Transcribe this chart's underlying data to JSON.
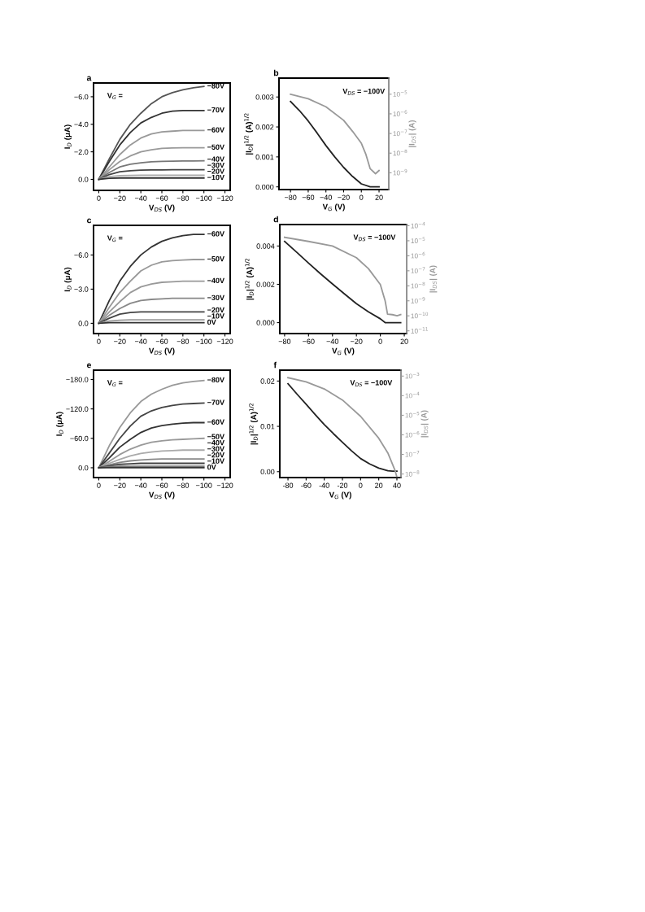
{
  "chart_data": [
    {
      "type": "line",
      "title": "a",
      "xlabel": "V$_{DS}$ (V)",
      "ylabel": "I$_{D}$ (μA)",
      "annotations": [
        "V$_{G}$ ="
      ],
      "x": [
        0,
        -10,
        -20,
        -30,
        -40,
        -50,
        -60,
        -70,
        -80,
        -90,
        -100
      ],
      "xlim": [
        5,
        -125
      ],
      "ylim": [
        0.8,
        -7.0
      ],
      "xticks": [
        {
          "value": 0,
          "label": "0"
        },
        {
          "value": -20,
          "label": "−20"
        },
        {
          "value": -40,
          "label": "−40"
        },
        {
          "value": -60,
          "label": "−60"
        },
        {
          "value": -80,
          "label": "−80"
        },
        {
          "value": -100,
          "label": "−100"
        },
        {
          "value": -120,
          "label": "−120"
        }
      ],
      "yticks": [
        {
          "value": 0,
          "label": "0.0"
        },
        {
          "value": -2,
          "label": "−2.0"
        },
        {
          "value": -4,
          "label": "−4.0"
        },
        {
          "value": -6,
          "label": "−6.0"
        }
      ],
      "series": [
        {
          "name": "−80V",
          "color": "#555555",
          "values": [
            0,
            -1.5,
            -2.9,
            -4.0,
            -4.8,
            -5.5,
            -6.0,
            -6.3,
            -6.5,
            -6.65,
            -6.75
          ]
        },
        {
          "name": "−70V",
          "color": "#333333",
          "values": [
            0,
            -1.3,
            -2.5,
            -3.4,
            -4.1,
            -4.5,
            -4.8,
            -4.95,
            -5.0,
            -5.0,
            -5.0
          ]
        },
        {
          "name": "−60V",
          "color": "#999999",
          "values": [
            0,
            -0.9,
            -1.8,
            -2.5,
            -3.0,
            -3.3,
            -3.45,
            -3.5,
            -3.55,
            -3.55,
            -3.55
          ]
        },
        {
          "name": "−50V",
          "color": "#999999",
          "values": [
            0,
            -0.7,
            -1.3,
            -1.7,
            -2.0,
            -2.15,
            -2.25,
            -2.28,
            -2.3,
            -2.3,
            -2.3
          ]
        },
        {
          "name": "−40V",
          "color": "#777777",
          "values": [
            0,
            -0.5,
            -0.9,
            -1.1,
            -1.2,
            -1.27,
            -1.3,
            -1.32,
            -1.33,
            -1.34,
            -1.35
          ]
        },
        {
          "name": "−30V",
          "color": "#444444",
          "values": [
            0,
            -0.35,
            -0.55,
            -0.63,
            -0.67,
            -0.68,
            -0.69,
            -0.7,
            -0.7,
            -0.7,
            -0.7
          ]
        },
        {
          "name": "−20V",
          "color": "#aaaaaa",
          "values": [
            0,
            -0.2,
            -0.27,
            -0.29,
            -0.3,
            -0.3,
            -0.3,
            -0.3,
            -0.3,
            -0.3,
            -0.3
          ]
        },
        {
          "name": "−10V",
          "color": "#333333",
          "values": [
            0,
            -0.08,
            -0.1,
            -0.1,
            -0.1,
            -0.1,
            -0.1,
            -0.1,
            -0.1,
            -0.1,
            -0.1
          ]
        }
      ]
    },
    {
      "type": "line",
      "title": "b",
      "xlabel": "V$_{G}$ (V)",
      "ylabel": "|I$_{D}$|$^{1/2}$ (A)$^{1/2}$",
      "y2label": "|I$_{DS}$| (A)",
      "annotations": [
        "V$_{DS}$ = −100V"
      ],
      "log": "y2",
      "xlim": [
        -93,
        31
      ],
      "ylim": [
        -9e-05,
        0.00363
      ],
      "y2lim": [
        1.4e-10,
        6.6e-05
      ],
      "xticks": [
        {
          "value": -80,
          "label": "−80"
        },
        {
          "value": -60,
          "label": "−60"
        },
        {
          "value": -40,
          "label": "−40"
        },
        {
          "value": -20,
          "label": "−20"
        },
        0,
        20
      ],
      "yticks": [
        {
          "value": 0,
          "label": "0.000"
        },
        {
          "value": 0.001,
          "label": "0.001"
        },
        {
          "value": 0.002,
          "label": "0.002"
        },
        {
          "value": 0.003,
          "label": "0.003"
        }
      ],
      "y2ticks": [
        {
          "value": 1e-09,
          "label": "10$^{−9}$"
        },
        {
          "value": 1e-08,
          "label": "10$^{−8}$"
        },
        {
          "value": 1e-07,
          "label": "10$^{−7}$"
        },
        {
          "value": 1e-06,
          "label": "10$^{−6}$"
        },
        {
          "value": 1e-05,
          "label": "10$^{−5}$"
        }
      ],
      "series": [
        {
          "color": "#222222",
          "x": [
            -80,
            -70,
            -60,
            -50,
            -40,
            -30,
            -20,
            -10,
            0,
            10,
            20
          ],
          "values": [
            0.00285,
            0.00255,
            0.0022,
            0.0018,
            0.00138,
            0.001,
            0.00065,
            0.00035,
            0.0001,
            0,
            0
          ]
        },
        {
          "color": "#999999",
          "axis": "y2",
          "x": [
            -80,
            -60,
            -40,
            -20,
            -10,
            0,
            5,
            10,
            16,
            20
          ],
          "values": [
            1e-05,
            5.9e-06,
            2.3e-06,
            4.7e-07,
            1.3e-07,
            3.2e-08,
            9e-09,
            1.6e-09,
            9e-10,
            1.3e-09
          ]
        }
      ]
    },
    {
      "type": "line",
      "title": "c",
      "xlabel": "V$_{DS}$ (V)",
      "ylabel": "I$_{D}$ (μA)",
      "annotations": [
        "V$_{G}$ ="
      ],
      "x": [
        0,
        -10,
        -20,
        -30,
        -40,
        -50,
        -60,
        -70,
        -80,
        -90,
        -100
      ],
      "xlim": [
        5,
        -125
      ],
      "ylim": [
        0.9,
        -8.6
      ],
      "xticks": [
        {
          "value": 0,
          "label": "0"
        },
        {
          "value": -20,
          "label": "−20"
        },
        {
          "value": -40,
          "label": "−40"
        },
        {
          "value": -60,
          "label": "−60"
        },
        {
          "value": -80,
          "label": "−80"
        },
        {
          "value": -100,
          "label": "−100"
        },
        {
          "value": -120,
          "label": "−120"
        }
      ],
      "yticks": [
        {
          "value": 0,
          "label": "0.0"
        },
        {
          "value": -3,
          "label": "−3.0"
        },
        {
          "value": -6,
          "label": "−6.0"
        }
      ],
      "series": [
        {
          "name": "−60V",
          "color": "#333333",
          "values": [
            0,
            -2.0,
            -3.7,
            -5.0,
            -6.0,
            -6.7,
            -7.2,
            -7.5,
            -7.7,
            -7.8,
            -7.8
          ]
        },
        {
          "name": "−50V",
          "color": "#999999",
          "values": [
            0,
            -1.4,
            -2.7,
            -3.7,
            -4.6,
            -5.1,
            -5.4,
            -5.5,
            -5.55,
            -5.6,
            -5.6
          ]
        },
        {
          "name": "−40V",
          "color": "#999999",
          "values": [
            0,
            -1.0,
            -1.9,
            -2.7,
            -3.2,
            -3.45,
            -3.6,
            -3.65,
            -3.7,
            -3.7,
            -3.7
          ]
        },
        {
          "name": "−30V",
          "color": "#888888",
          "values": [
            0,
            -0.7,
            -1.3,
            -1.75,
            -2.0,
            -2.1,
            -2.15,
            -2.2,
            -2.2,
            -2.2,
            -2.2
          ]
        },
        {
          "name": "−20V",
          "color": "#444444",
          "values": [
            0,
            -0.45,
            -0.8,
            -0.95,
            -1.0,
            -1.0,
            -1.0,
            -1.0,
            -1.0,
            -1.0,
            -1.0
          ]
        },
        {
          "name": "−10V",
          "color": "#999999",
          "values": [
            0,
            -0.2,
            -0.27,
            -0.3,
            -0.3,
            -0.3,
            -0.3,
            -0.3,
            -0.3,
            -0.3,
            -0.3
          ]
        },
        {
          "name": "0V",
          "color": "#333333",
          "values": [
            0,
            -0.05,
            -0.05,
            -0.05,
            -0.05,
            -0.05,
            -0.05,
            -0.05,
            -0.05,
            -0.05,
            -0.05
          ]
        }
      ]
    },
    {
      "type": "line",
      "title": "d",
      "xlabel": "V$_{G}$ (V)",
      "ylabel": "|I$_{D}$|$^{1/2}$ (A)$^{1/2}$",
      "y2label": "|I$_{DS}$| (A)",
      "annotations": [
        "V$_{DS}$ = −100V"
      ],
      "log": "y2",
      "xlim": [
        -84,
        22
      ],
      "ylim": [
        -0.00057,
        0.00512
      ],
      "y2lim": [
        6.6e-12,
        0.00012
      ],
      "xticks": [
        {
          "value": -80,
          "label": "−80"
        },
        {
          "value": -60,
          "label": "−60"
        },
        {
          "value": -40,
          "label": "−40"
        },
        {
          "value": -20,
          "label": "−20"
        },
        0,
        20
      ],
      "yticks": [
        {
          "value": 0,
          "label": "0.000"
        },
        {
          "value": 0.002,
          "label": "0.002"
        },
        {
          "value": 0.004,
          "label": "0.004"
        }
      ],
      "y2ticks": [
        {
          "value": 1e-11,
          "label": "10$^{−11}$"
        },
        {
          "value": 1e-10,
          "label": "10$^{−10}$"
        },
        {
          "value": 1e-09,
          "label": "10$^{−9}$"
        },
        {
          "value": 1e-08,
          "label": "10$^{−8}$"
        },
        {
          "value": 1e-07,
          "label": "10$^{−7}$"
        },
        {
          "value": 1e-06,
          "label": "10$^{−6}$"
        },
        {
          "value": 1e-05,
          "label": "10$^{−5}$"
        },
        {
          "value": 0.0001,
          "label": "10$^{−4}$"
        }
      ],
      "series": [
        {
          "color": "#222222",
          "x": [
            -80,
            -70,
            -60,
            -50,
            -40,
            -30,
            -20,
            -10,
            0,
            4,
            10,
            17
          ],
          "values": [
            0.00424,
            0.00368,
            0.00311,
            0.00255,
            0.00202,
            0.0015,
            0.00099,
            0.00057,
            0.0002,
            0,
            0,
            0
          ]
        },
        {
          "color": "#999999",
          "axis": "y2",
          "x": [
            -80,
            -60,
            -40,
            -20,
            -10,
            0,
            4,
            6,
            10,
            14,
            17
          ],
          "values": [
            1.7e-05,
            9e-06,
            4.5e-06,
            7.4e-07,
            1.4e-07,
            1.2e-08,
            1e-09,
            1.3e-10,
            1.2e-10,
            1e-10,
            1.2e-10
          ]
        }
      ]
    },
    {
      "type": "line",
      "title": "e",
      "xlabel": "V$_{DS}$ (V)",
      "ylabel": "I$_{D}$ (μA)",
      "annotations": [
        "V$_{G}$ ="
      ],
      "x": [
        0,
        -10,
        -20,
        -30,
        -40,
        -50,
        -60,
        -70,
        -80,
        -90,
        -100
      ],
      "xlim": [
        5,
        -125
      ],
      "ylim": [
        20,
        -199
      ],
      "xticks": [
        {
          "value": 0,
          "label": "0"
        },
        {
          "value": -20,
          "label": "−20"
        },
        {
          "value": -40,
          "label": "−40"
        },
        {
          "value": -60,
          "label": "−60"
        },
        {
          "value": -80,
          "label": "−80"
        },
        {
          "value": -100,
          "label": "−100"
        },
        {
          "value": -120,
          "label": "−120"
        }
      ],
      "yticks": [
        {
          "value": 0,
          "label": "0.0"
        },
        {
          "value": -60,
          "label": "−60.0"
        },
        {
          "value": -120,
          "label": "−120.0"
        },
        {
          "value": -180,
          "label": "−180.0"
        }
      ],
      "series": [
        {
          "name": "−80V",
          "color": "#999999",
          "values": [
            0,
            -45,
            -82,
            -112,
            -135,
            -150,
            -160,
            -168,
            -173,
            -176,
            -178
          ]
        },
        {
          "name": "−70V",
          "color": "#444444",
          "values": [
            0,
            -30,
            -60,
            -85,
            -105,
            -116,
            -123,
            -127,
            -130,
            -131,
            -132
          ]
        },
        {
          "name": "−60V",
          "color": "#333333",
          "values": [
            0,
            -20,
            -42,
            -58,
            -72,
            -81,
            -86,
            -89,
            -91,
            -92,
            -92
          ]
        },
        {
          "name": "−50V",
          "color": "#999999",
          "values": [
            0,
            -13,
            -27,
            -38,
            -46,
            -52,
            -55,
            -57,
            -58,
            -59,
            -60
          ]
        },
        {
          "name": "−40V",
          "color": "#aaaaaa",
          "values": [
            0,
            -9,
            -17,
            -24,
            -29,
            -32,
            -34,
            -35,
            -36,
            -36,
            -36
          ]
        },
        {
          "name": "−30V",
          "color": "#888888",
          "values": [
            0,
            -6,
            -11,
            -14,
            -16,
            -17,
            -18,
            -18,
            -18,
            -18,
            -18
          ]
        },
        {
          "name": "−20V",
          "color": "#444444",
          "values": [
            0,
            -4,
            -7,
            -8,
            -9,
            -9,
            -9,
            -9,
            -9,
            -9,
            -9
          ]
        },
        {
          "name": "−10V",
          "color": "#777777",
          "values": [
            0,
            -2,
            -3,
            -3,
            -3,
            -3,
            -3,
            -3,
            -3,
            -3,
            -3
          ]
        },
        {
          "name": "0V",
          "color": "#333333",
          "values": [
            0,
            0,
            0,
            0,
            0,
            0,
            0,
            0,
            0,
            0,
            0
          ]
        }
      ]
    },
    {
      "type": "line",
      "title": "f",
      "xlabel": "V$_{G}$ (V)",
      "ylabel": "|I$_{D}$|$^{1/2}$ (A)$^{1/2}$",
      "y2label": "|I$_{DS}$| (A)",
      "annotations": [
        "V$_{DS}$ = −100V"
      ],
      "log": "y2",
      "xlim": [
        -89,
        44.5
      ],
      "ylim": [
        -0.0013,
        0.0224
      ],
      "y2lim": [
        6.6e-09,
        0.002
      ],
      "xticks": [
        {
          "value": -80,
          "label": "-80"
        },
        {
          "value": -60,
          "label": "-60"
        },
        {
          "value": -40,
          "label": "-40"
        },
        {
          "value": -20,
          "label": "-20"
        },
        0,
        20,
        40
      ],
      "yticks": [
        {
          "value": 0,
          "label": "0.00"
        },
        {
          "value": 0.01,
          "label": "0.01"
        },
        {
          "value": 0.02,
          "label": "0.02"
        }
      ],
      "y2ticks": [
        {
          "value": 1e-08,
          "label": "10$^{−8}$"
        },
        {
          "value": 1e-07,
          "label": "10$^{−7}$"
        },
        {
          "value": 1e-06,
          "label": "10$^{−6}$"
        },
        {
          "value": 1e-05,
          "label": "10$^{−5}$"
        },
        {
          "value": 0.0001,
          "label": "10$^{−4}$"
        },
        {
          "value": 0.001,
          "label": "10$^{−3}$"
        }
      ],
      "series": [
        {
          "color": "#222222",
          "x": [
            -80,
            -70,
            -60,
            -50,
            -40,
            -30,
            -20,
            -10,
            0,
            10,
            20,
            30,
            35,
            40
          ],
          "values": [
            0.0194,
            0.0171,
            0.0149,
            0.0126,
            0.0104,
            0.0084,
            0.0065,
            0.0046,
            0.0029,
            0.0017,
            0.0008,
            0.0002,
            0.0001,
            0.0001
          ]
        },
        {
          "color": "#999999",
          "axis": "y2",
          "x": [
            -80,
            -60,
            -40,
            -20,
            0,
            20,
            30,
            38,
            40
          ],
          "values": [
            0.00083,
            0.00051,
            0.00022,
            6e-05,
            8.8e-06,
            6.7e-07,
            1.2e-07,
            1.5e-08,
            7e-09
          ]
        }
      ]
    }
  ]
}
